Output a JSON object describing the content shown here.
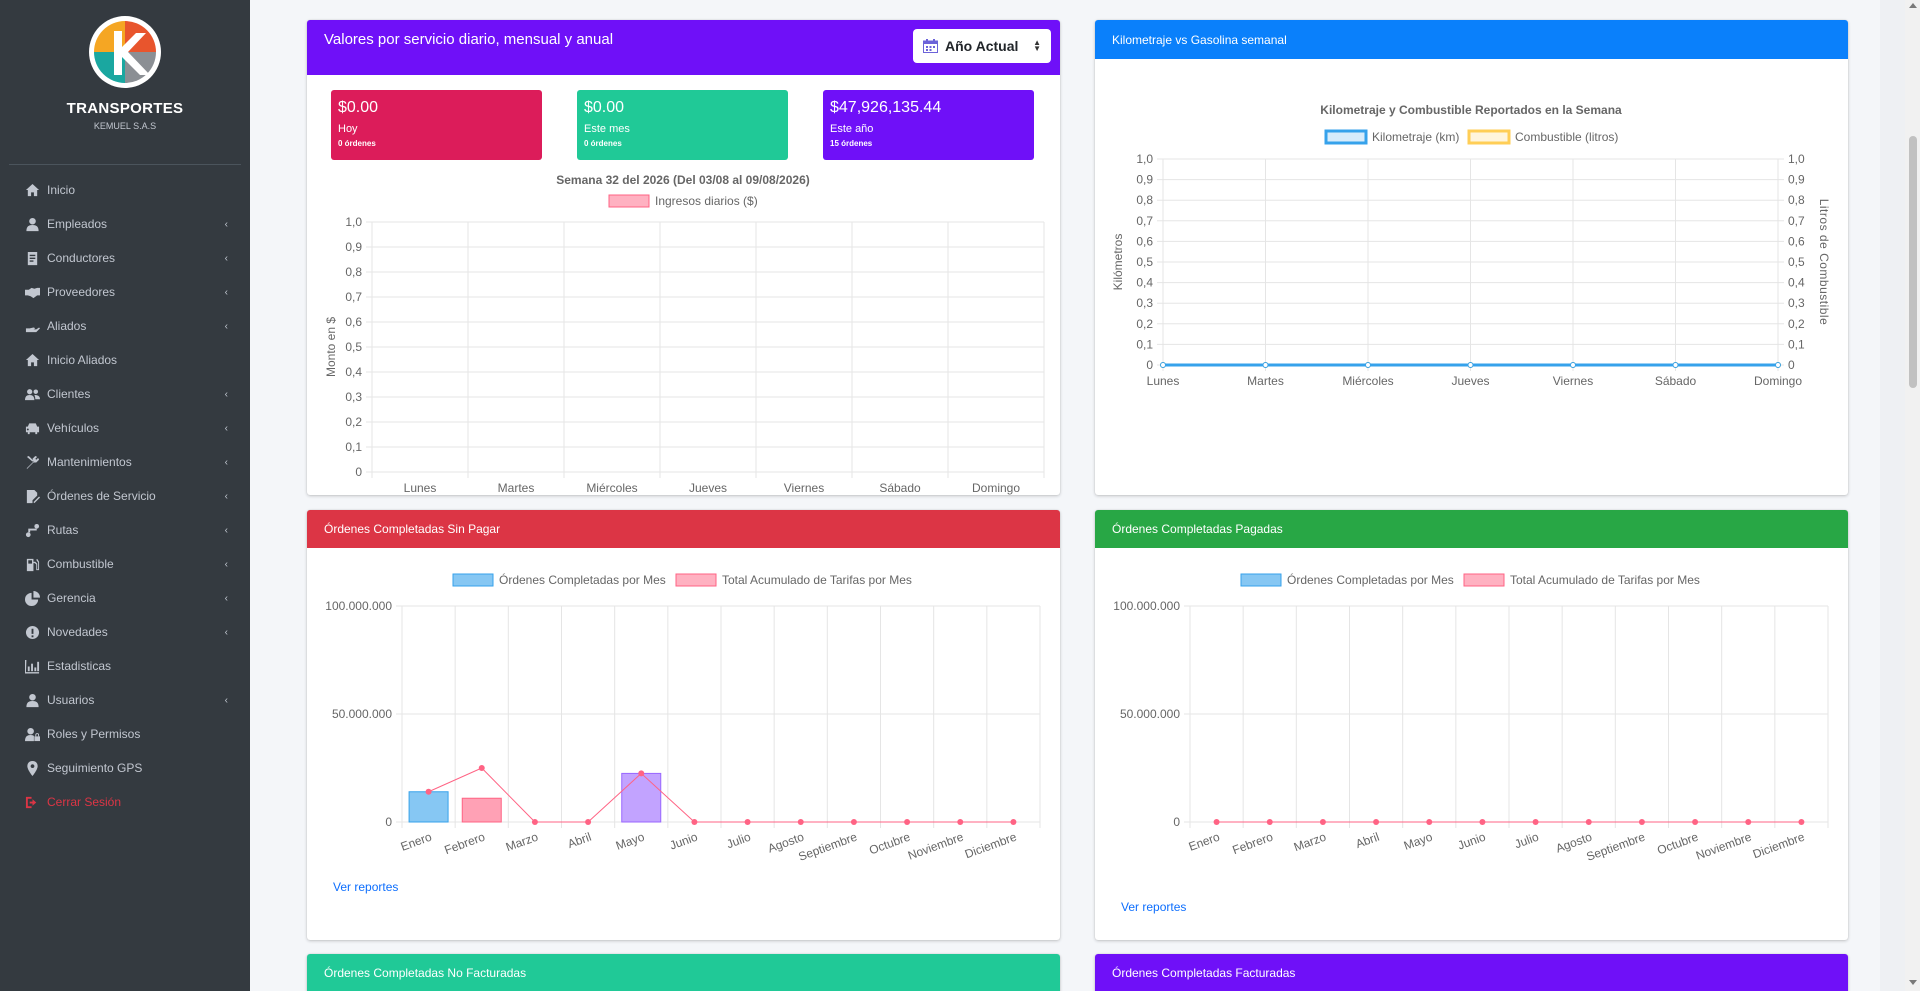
{
  "sidebar": {
    "brand_title": "TRANSPORTES",
    "brand_sub": "KEMUEL S.A.S",
    "items": [
      {
        "label": "Inicio",
        "icon": "home-icon",
        "chev": ""
      },
      {
        "label": "Empleados",
        "icon": "user-icon",
        "chev": "‹"
      },
      {
        "label": "Conductores",
        "icon": "id-card-icon",
        "chev": "‹"
      },
      {
        "label": "Proveedores",
        "icon": "handshake-icon",
        "chev": "‹"
      },
      {
        "label": "Aliados",
        "icon": "hand-holding-icon",
        "chev": "‹"
      },
      {
        "label": "Inicio Aliados",
        "icon": "home-icon",
        "chev": ""
      },
      {
        "label": "Clientes",
        "icon": "users-icon",
        "chev": "‹"
      },
      {
        "label": "Vehículos",
        "icon": "car-icon",
        "chev": "‹"
      },
      {
        "label": "Mantenimientos",
        "icon": "tools-icon",
        "chev": "‹"
      },
      {
        "label": "Órdenes de Servicio",
        "icon": "file-signature-icon",
        "chev": "‹"
      },
      {
        "label": "Rutas",
        "icon": "route-icon",
        "chev": "‹"
      },
      {
        "label": "Combustible",
        "icon": "gas-pump-icon",
        "chev": "‹"
      },
      {
        "label": "Gerencia",
        "icon": "pie-chart-icon",
        "chev": "‹"
      },
      {
        "label": "Novedades",
        "icon": "exclamation-circle-icon",
        "chev": "‹"
      },
      {
        "label": "Estadisticas",
        "icon": "bar-chart-icon",
        "chev": ""
      },
      {
        "label": "Usuarios",
        "icon": "user-icon",
        "chev": "‹"
      },
      {
        "label": "Roles y Permisos",
        "icon": "user-lock-icon",
        "chev": ""
      },
      {
        "label": "Seguimiento GPS",
        "icon": "map-marker-icon",
        "chev": ""
      },
      {
        "label": "Cerrar Sesión",
        "icon": "sign-out-icon",
        "chev": ""
      }
    ]
  },
  "card_daily": {
    "title": "Valores por servicio diario, mensual y anual",
    "year_button": "Año Actual",
    "stats": [
      {
        "value": "$0.00",
        "label": "Hoy",
        "sub": "0 órdenes"
      },
      {
        "value": "$0.00",
        "label": "Este mes",
        "sub": "0 órdenes"
      },
      {
        "value": "$47,926,135.44",
        "label": "Este año",
        "sub": "15 órdenes"
      }
    ]
  },
  "card_km": {
    "title": "Kilometraje vs Gasolina semanal"
  },
  "card_unpaid": {
    "title": "Órdenes Completadas Sin Pagar",
    "link": "Ver reportes"
  },
  "card_paid": {
    "title": "Órdenes Completadas Pagadas",
    "link": "Ver reportes"
  },
  "card_notinvoiced": {
    "title": "Órdenes Completadas No Facturadas"
  },
  "card_invoiced": {
    "title": "Órdenes Completadas Facturadas"
  },
  "chart_data": [
    {
      "type": "bar",
      "title": "Semana 32 del 2026 (Del 03/08 al 09/08/2026)",
      "ylabel": "Monto en $",
      "legend_position": "top",
      "categories": [
        "Lunes",
        "Martes",
        "Miércoles",
        "Jueves",
        "Viernes",
        "Sábado",
        "Domingo"
      ],
      "yticks": [
        "0",
        "0,1",
        "0,2",
        "0,3",
        "0,4",
        "0,5",
        "0,6",
        "0,7",
        "0,8",
        "0,9",
        "1,0"
      ],
      "ylim": [
        0,
        1
      ],
      "series": [
        {
          "name": "Ingresos diarios ($)",
          "values": [
            0,
            0,
            0,
            0,
            0,
            0,
            0
          ],
          "color": "#ff6384"
        }
      ]
    },
    {
      "type": "line",
      "title": "Kilometraje y Combustible Reportados en la Semana",
      "ylabel": "Kilómetros",
      "y2label": "Litros de Combustible",
      "legend_position": "top",
      "categories": [
        "Lunes",
        "Martes",
        "Miércoles",
        "Jueves",
        "Viernes",
        "Sábado",
        "Domingo"
      ],
      "yticks": [
        "0",
        "0,1",
        "0,2",
        "0,3",
        "0,4",
        "0,5",
        "0,6",
        "0,7",
        "0,8",
        "0,9",
        "1,0"
      ],
      "ylim": [
        0,
        1
      ],
      "series": [
        {
          "name": "Kilometraje (km)",
          "values": [
            0,
            0,
            0,
            0,
            0,
            0,
            0
          ],
          "color": "#36a2eb"
        },
        {
          "name": "Combustible (litros)",
          "values": [
            0,
            0,
            0,
            0,
            0,
            0,
            0
          ],
          "color": "#ffce56"
        }
      ]
    },
    {
      "type": "bar",
      "legend_position": "top",
      "categories": [
        "Enero",
        "Febrero",
        "Marzo",
        "Abril",
        "Mayo",
        "Junio",
        "Julio",
        "Agosto",
        "Septiembre",
        "Octubre",
        "Noviembre",
        "Diciembre"
      ],
      "yticks": [
        "0",
        "50.000.000",
        "100.000.000"
      ],
      "ylim": [
        0,
        100000000
      ],
      "series": [
        {
          "name": "Órdenes Completadas por Mes",
          "type": "bar",
          "values": [
            14000000,
            11000000,
            0,
            0,
            22500000,
            0,
            0,
            0,
            0,
            0,
            0,
            0
          ],
          "colors": [
            "#36a2eb",
            "#ff6384",
            "#ff9f40",
            "#4bc0c0",
            "#9966ff",
            "#ffcd56",
            "#c9cbcf",
            "#36a2eb",
            "#ff6384",
            "#4bc0c0",
            "#9966ff",
            "#ffcd56"
          ]
        },
        {
          "name": "Total Acumulado de Tarifas por Mes",
          "type": "line",
          "values": [
            14000000,
            25000000,
            0,
            0,
            22500000,
            0,
            0,
            0,
            0,
            0,
            0,
            0
          ],
          "color": "#ff6384"
        }
      ]
    },
    {
      "type": "bar",
      "legend_position": "top",
      "categories": [
        "Enero",
        "Febrero",
        "Marzo",
        "Abril",
        "Mayo",
        "Junio",
        "Julio",
        "Agosto",
        "Septiembre",
        "Octubre",
        "Noviembre",
        "Diciembre"
      ],
      "yticks": [
        "0",
        "50.000.000",
        "100.000.000"
      ],
      "ylim": [
        0,
        100000000
      ],
      "series": [
        {
          "name": "Órdenes Completadas por Mes",
          "type": "bar",
          "values": [
            0,
            0,
            0,
            0,
            0,
            0,
            0,
            0,
            0,
            0,
            0,
            0
          ],
          "color": "#36a2eb"
        },
        {
          "name": "Total Acumulado de Tarifas por Mes",
          "type": "line",
          "values": [
            0,
            0,
            0,
            0,
            0,
            0,
            0,
            0,
            0,
            0,
            0,
            0
          ],
          "color": "#ff6384"
        }
      ]
    }
  ]
}
